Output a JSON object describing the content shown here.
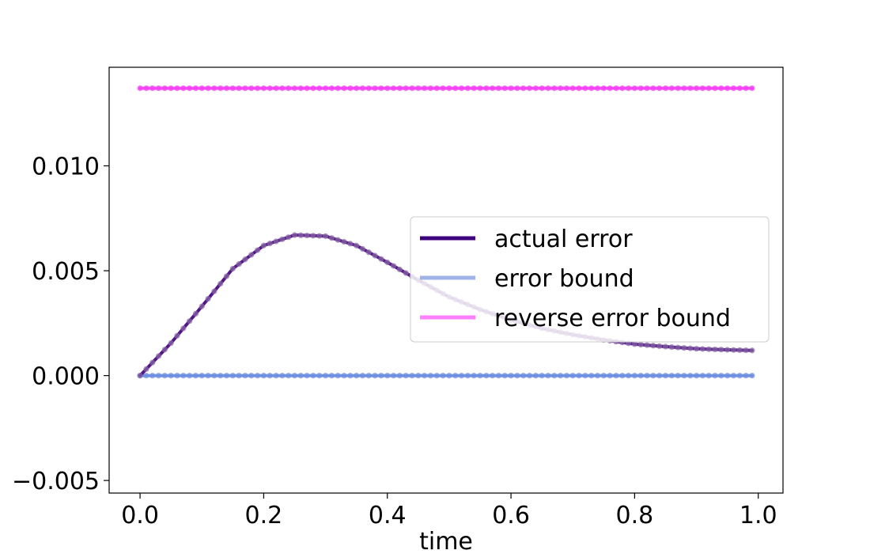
{
  "chart_data": {
    "type": "line",
    "title": "",
    "xlabel": "time",
    "ylabel": "",
    "xlim": [
      -0.05,
      1.04
    ],
    "ylim": [
      -0.0056,
      0.0147
    ],
    "xticks": [
      0.0,
      0.2,
      0.4,
      0.6,
      0.8,
      1.0
    ],
    "xtick_labels": [
      "0.0",
      "0.2",
      "0.4",
      "0.6",
      "0.8",
      "1.0"
    ],
    "yticks": [
      -0.005,
      0.0,
      0.005,
      0.01
    ],
    "ytick_labels": [
      "−0.005",
      "0.000",
      "0.005",
      "0.010"
    ],
    "grid": false,
    "legend_position": "center-right",
    "x": [
      0.0,
      0.05,
      0.1,
      0.15,
      0.2,
      0.25,
      0.3,
      0.35,
      0.4,
      0.45,
      0.5,
      0.55,
      0.6,
      0.65,
      0.7,
      0.75,
      0.8,
      0.85,
      0.9,
      0.95,
      0.99
    ],
    "series": [
      {
        "name": "actual error",
        "legend_color": "#3f007d",
        "line_color": "#4a0a80",
        "marker_color": "#8a6aa8",
        "values": [
          0.0,
          0.00155,
          0.0033,
          0.0051,
          0.0062,
          0.0067,
          0.00665,
          0.0062,
          0.0054,
          0.00455,
          0.00375,
          0.00315,
          0.00265,
          0.00225,
          0.00195,
          0.0017,
          0.0015,
          0.00138,
          0.00128,
          0.00123,
          0.0012
        ]
      },
      {
        "name": "error bound",
        "legend_color": "#9fb3e8",
        "line_color": "#6d8fe0",
        "marker_color": "#6d8fe0",
        "values": [
          0.0,
          0.0,
          0.0,
          0.0,
          0.0,
          0.0,
          0.0,
          0.0,
          0.0,
          0.0,
          0.0,
          0.0,
          0.0,
          0.0,
          0.0,
          0.0,
          0.0,
          0.0,
          0.0,
          0.0,
          0.0
        ]
      },
      {
        "name": "reverse error bound",
        "legend_color": "#ff80ff",
        "line_color": "#ff40ff",
        "marker_color": "#f040f0",
        "values": [
          0.0137,
          0.0137,
          0.0137,
          0.0137,
          0.0137,
          0.0137,
          0.0137,
          0.0137,
          0.0137,
          0.0137,
          0.0137,
          0.0137,
          0.0137,
          0.0137,
          0.0137,
          0.0137,
          0.0137,
          0.0137,
          0.0137,
          0.0137,
          0.0137
        ]
      }
    ]
  }
}
